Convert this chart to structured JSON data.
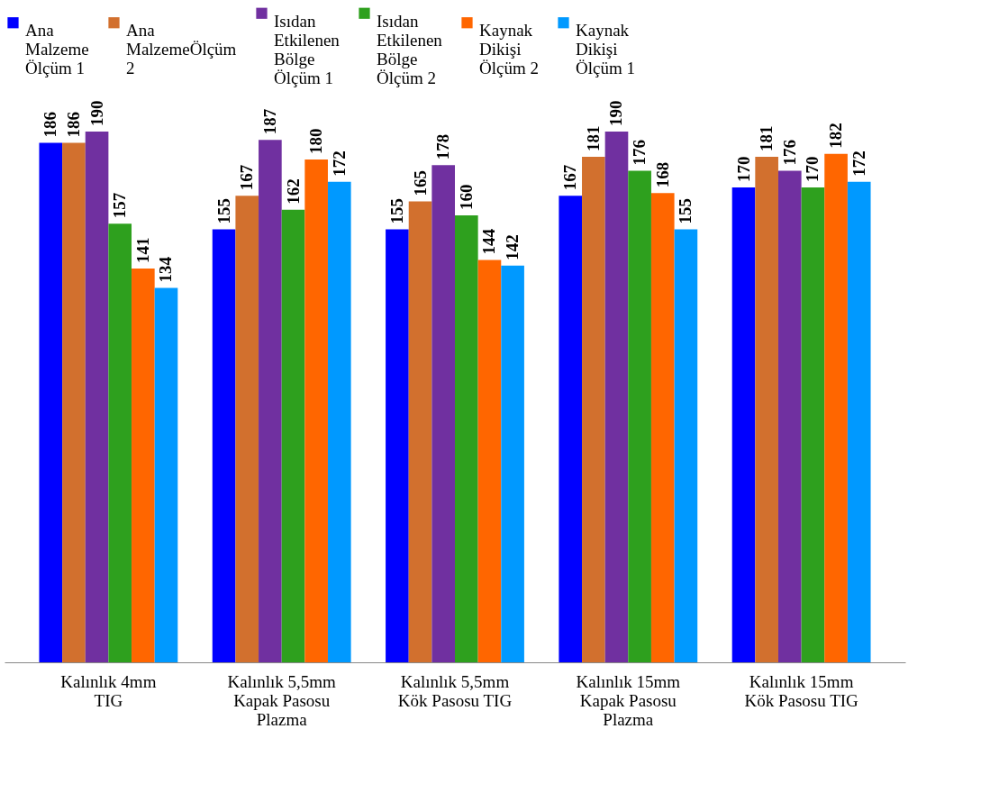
{
  "chart_data": {
    "type": "bar",
    "categories": [
      "Kalınlık 4mm TIG",
      "Kalınlık 5,5mm Kapak Pasosu Plazma",
      "Kalınlık 5,5mm Kök Pasosu TIG",
      "Kalınlık 15mm Kapak Pasosu Plazma",
      "Kalınlık 15mm Kök Pasosu TIG"
    ],
    "series": [
      {
        "name": "Ana Malzeme Ölçüm 1",
        "color": "#0000ff",
        "values": [
          186,
          155,
          155,
          167,
          170
        ]
      },
      {
        "name": "Ana MalzemeÖlçüm 2",
        "color": "#d2702e",
        "values": [
          186,
          167,
          165,
          181,
          181
        ]
      },
      {
        "name": "Isıdan Etkilenen Bölge Ölçüm 1",
        "color": "#7030a0",
        "values": [
          190,
          187,
          178,
          190,
          176
        ]
      },
      {
        "name": "Isıdan Etkilenen Bölge Ölçüm 2",
        "color": "#2ea01e",
        "values": [
          157,
          162,
          160,
          176,
          170
        ]
      },
      {
        "name": "Kaynak Dikişi Ölçüm 2",
        "color": "#ff6600",
        "values": [
          141,
          180,
          144,
          168,
          182
        ]
      },
      {
        "name": "Kaynak Dikişi Ölçüm 1",
        "color": "#0099ff",
        "values": [
          134,
          172,
          142,
          155,
          172
        ]
      }
    ],
    "data_labels": true,
    "legend": "top",
    "grid": false
  }
}
